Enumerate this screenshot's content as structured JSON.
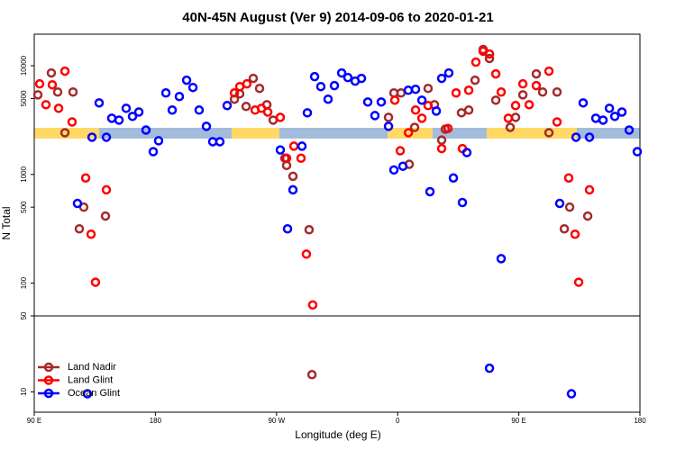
{
  "chart_data": {
    "type": "scatter",
    "title": "40N-45N August (Ver 9)   2014-09-06 to 2020-01-21",
    "xlabel": "Longitude (deg E)",
    "ylabel": "N Total",
    "xlim": [
      90,
      540
    ],
    "ylim": [
      6.5,
      19500
    ],
    "ylog": true,
    "legend": "bottom-left",
    "xticks": [
      {
        "value": 90,
        "label": "90 E"
      },
      180,
      {
        "value": 270,
        "label": "90 W"
      },
      {
        "value": 360,
        "label": "0"
      },
      {
        "value": 450,
        "label": "90 E"
      },
      {
        "value": 540,
        "label": "180"
      }
    ],
    "yticks": [
      10,
      50,
      100,
      500,
      1000,
      5000,
      10000
    ],
    "series": [
      {
        "name": "Land Nadir",
        "color": "#a52a2a",
        "x": [
          92.7,
          102.7,
          107.4,
          112.8,
          118.8,
          123.5,
          126.8,
          142.9,
          238.7,
          242.7,
          247.4,
          252.7,
          257.4,
          262.8,
          267.5,
          276.2,
          277.5,
          282.2,
          294.2,
          296.3,
          353.2,
          357.2,
          362.5,
          368.6,
          372.6,
          382.6,
          387.3,
          392.7,
          395.4,
          407.4,
          412.8,
          417.5,
          423.5,
          428.2,
          432.9,
          443.6,
          447.6,
          453,
          463,
          467.7,
          472.4,
          478.4,
          483.8,
          487.8,
          501.2
        ],
        "values": [
          5400,
          8580,
          5730,
          2420,
          5730,
          316,
          500,
          414,
          4920,
          5520,
          4220,
          7650,
          6190,
          4380,
          3160,
          1410,
          1210,
          962,
          310,
          14.4,
          3350,
          5620,
          5620,
          1240,
          2710,
          6190,
          4380,
          2070,
          2610,
          3690,
          3910,
          7360,
          14100,
          11660,
          4820,
          2710,
          3350,
          5400,
          8410,
          5730,
          2420,
          5730,
          316,
          500,
          414
        ]
      },
      {
        "name": "Land Glint",
        "color": "#ff0000",
        "x": [
          94,
          98.7,
          103.4,
          108.1,
          112.8,
          118.1,
          128.2,
          132.2,
          135.5,
          143.6,
          238.7,
          242.7,
          248,
          254.1,
          258.8,
          263.5,
          272.8,
          277.5,
          282.9,
          288.2,
          292.2,
          296.9,
          357.9,
          361.9,
          368,
          373.3,
          378,
          382.6,
          392.7,
          397.4,
          403.4,
          408.1,
          412.8,
          418.1,
          423.5,
          428.2,
          432.9,
          436.9,
          442.2,
          447.6,
          453,
          457.7,
          463,
          472.4,
          478.4,
          487.1,
          491.8,
          494.5,
          502.5
        ],
        "values": [
          6810,
          4380,
          6680,
          4060,
          8910,
          3040,
          928,
          282,
          102,
          722,
          5620,
          6430,
          6810,
          3910,
          4060,
          3750,
          3350,
          1410,
          1820,
          1410,
          185,
          63,
          4820,
          1650,
          2420,
          3910,
          3290,
          4300,
          1730,
          2650,
          5620,
          1730,
          5950,
          10800,
          13600,
          12830,
          8410,
          5730,
          3290,
          4300,
          6810,
          4380,
          6560,
          8910,
          3040,
          928,
          282,
          102,
          722
        ]
      },
      {
        "name": "Ocean Glint",
        "color": "#0000ff",
        "x": [
          122.1,
          129.5,
          132.9,
          138.2,
          143.6,
          147.6,
          153,
          158.3,
          163,
          167.7,
          173,
          178.4,
          182.4,
          187.8,
          192.5,
          197.8,
          203.2,
          207.9,
          212.5,
          217.9,
          222.6,
          227.9,
          233.3,
          272.8,
          278.2,
          282.2,
          288.9,
          292.9,
          298.3,
          302.9,
          308.3,
          313,
          318.4,
          323,
          328.4,
          333.1,
          337.8,
          343.1,
          347.8,
          353.2,
          357.2,
          363.9,
          367.9,
          373.3,
          378,
          384,
          388.7,
          392.7,
          398,
          401.4,
          408.1,
          411.4,
          428.2,
          436.9,
          480.4,
          489.1,
          492.5,
          497.8,
          502.5,
          507.2,
          512.6,
          517.3,
          521.3,
          526.6,
          532,
          538
        ],
        "values": [
          541,
          9.6,
          2200,
          4550,
          2200,
          3290,
          3160,
          4060,
          3420,
          3750,
          2560,
          1620,
          2040,
          5620,
          3910,
          5210,
          7360,
          6310,
          3910,
          2770,
          2000,
          2000,
          4300,
          1680,
          316,
          722,
          1820,
          3690,
          7940,
          6430,
          4920,
          6560,
          8580,
          7790,
          7220,
          7650,
          4640,
          3480,
          4640,
          2770,
          1100,
          1190,
          5950,
          6070,
          4820,
          694,
          3830,
          7650,
          8580,
          928,
          552,
          1590,
          16.5,
          168,
          541,
          9.6,
          2200,
          4550,
          2200,
          3290,
          3160,
          4060,
          3420,
          3750,
          2560,
          1620
        ]
      }
    ]
  }
}
